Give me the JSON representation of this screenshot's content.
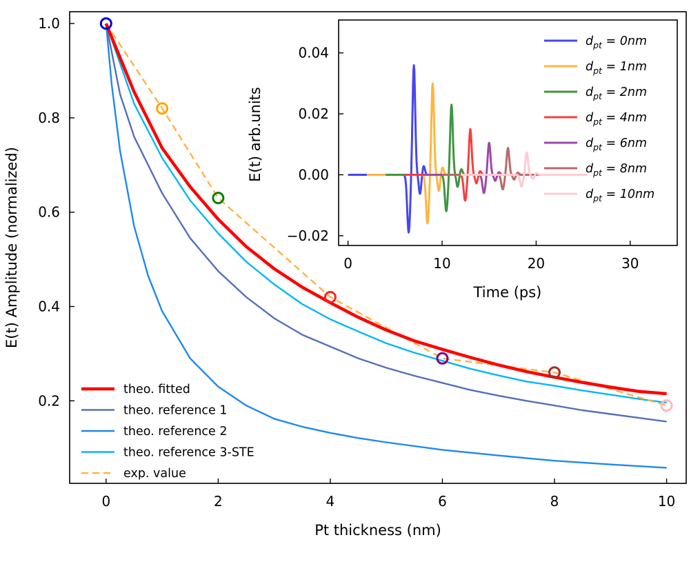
{
  "chart_data": [
    {
      "type": "line",
      "name": "main-plot",
      "xlabel": "Pt thickness (nm)",
      "ylabel": "E(t) Amplitude (normalized)",
      "xlim": [
        -0.65,
        10.35
      ],
      "ylim": [
        0.025,
        1.025
      ],
      "xticks": [
        {
          "value": 0,
          "label": "0"
        },
        {
          "value": 2,
          "label": "2"
        },
        {
          "value": 4,
          "label": "4"
        },
        {
          "value": 6,
          "label": "6"
        },
        {
          "value": 8,
          "label": "8"
        },
        {
          "value": 10,
          "label": "10"
        }
      ],
      "yticks": [
        {
          "value": 0.2,
          "label": "0.2"
        },
        {
          "value": 0.4,
          "label": "0.4"
        },
        {
          "value": 0.6,
          "label": "0.6"
        },
        {
          "value": 0.8,
          "label": "0.8"
        },
        {
          "value": 1.0,
          "label": "1.0"
        }
      ],
      "legend_position": "bottom-left",
      "series": [
        {
          "name": "theo. fitted",
          "color": "#ff0000",
          "style": "solid",
          "weight": "thick",
          "x": [
            0,
            0.5,
            1,
            1.5,
            2,
            2.5,
            3,
            3.5,
            4,
            4.5,
            5,
            5.5,
            6,
            6.5,
            7,
            7.5,
            8,
            8.5,
            9,
            9.5,
            10
          ],
          "y": [
            1.0,
            0.855,
            0.736,
            0.654,
            0.585,
            0.527,
            0.48,
            0.441,
            0.408,
            0.377,
            0.35,
            0.327,
            0.309,
            0.292,
            0.276,
            0.262,
            0.25,
            0.239,
            0.229,
            0.22,
            0.215
          ]
        },
        {
          "name": "theo. reference 1",
          "color": "#5470b8",
          "style": "solid",
          "weight": "normal",
          "x": [
            0,
            0.25,
            0.5,
            1,
            1.5,
            2,
            2.5,
            3,
            3.5,
            4,
            4.5,
            5,
            5.5,
            6,
            6.5,
            7,
            7.5,
            8,
            8.5,
            9,
            9.5,
            10
          ],
          "y": [
            1.0,
            0.85,
            0.76,
            0.64,
            0.545,
            0.475,
            0.42,
            0.375,
            0.34,
            0.315,
            0.29,
            0.27,
            0.253,
            0.238,
            0.223,
            0.211,
            0.2,
            0.19,
            0.18,
            0.172,
            0.164,
            0.156
          ]
        },
        {
          "name": "theo. reference 2",
          "color": "#1e88f0",
          "style": "solid",
          "weight": "normal",
          "x": [
            0,
            0.1,
            0.25,
            0.5,
            0.75,
            1,
            1.5,
            2,
            2.5,
            3,
            3.5,
            4,
            4.5,
            5,
            6,
            7,
            8,
            9,
            10
          ],
          "y": [
            1.0,
            0.87,
            0.73,
            0.57,
            0.465,
            0.39,
            0.29,
            0.23,
            0.19,
            0.162,
            0.145,
            0.132,
            0.121,
            0.112,
            0.096,
            0.084,
            0.073,
            0.065,
            0.058
          ]
        },
        {
          "name": "theo. reference 3-STE",
          "color": "#00b8f5",
          "style": "solid",
          "weight": "normal",
          "x": [
            0,
            0.5,
            1,
            1.5,
            2,
            2.5,
            3,
            3.5,
            4,
            4.5,
            5,
            5.5,
            6,
            6.5,
            7,
            7.5,
            8,
            8.5,
            9,
            9.5,
            10
          ],
          "y": [
            1.0,
            0.83,
            0.715,
            0.625,
            0.555,
            0.495,
            0.447,
            0.405,
            0.373,
            0.347,
            0.322,
            0.302,
            0.285,
            0.268,
            0.254,
            0.241,
            0.232,
            0.222,
            0.213,
            0.204,
            0.196
          ]
        },
        {
          "name": "exp. value",
          "color": "#ffb340",
          "style": "dashed",
          "weight": "normal",
          "x": [
            0,
            1,
            2,
            4,
            6,
            8,
            10
          ],
          "y": [
            1.0,
            0.82,
            0.63,
            0.42,
            0.29,
            0.26,
            0.19
          ]
        }
      ],
      "markers": [
        {
          "x": 0,
          "y": 1.0,
          "color": "#0000e0"
        },
        {
          "x": 1,
          "y": 0.82,
          "color": "#ffa500"
        },
        {
          "x": 2,
          "y": 0.63,
          "color": "#008000"
        },
        {
          "x": 4,
          "y": 0.42,
          "color": "#ff2020"
        },
        {
          "x": 6,
          "y": 0.29,
          "color": "#800080"
        },
        {
          "x": 8,
          "y": 0.26,
          "color": "#a52a2a"
        },
        {
          "x": 10,
          "y": 0.19,
          "color": "#ffb6c1"
        }
      ]
    },
    {
      "type": "line",
      "name": "inset-plot",
      "xlabel": "Time (ps)",
      "ylabel": "E(t) arb.units",
      "xlim": [
        -1.0,
        35.0
      ],
      "ylim": [
        -0.0232,
        0.0508
      ],
      "xticks": [
        {
          "value": 0,
          "label": "0"
        },
        {
          "value": 10,
          "label": "10"
        },
        {
          "value": 20,
          "label": "20"
        },
        {
          "value": 30,
          "label": "30"
        }
      ],
      "yticks": [
        {
          "value": -0.02,
          "label": "−0.02"
        },
        {
          "value": 0.0,
          "label": "0.00"
        },
        {
          "value": 0.02,
          "label": "0.02"
        },
        {
          "value": 0.04,
          "label": "0.04"
        }
      ],
      "legend_position": "top-right",
      "series": [
        {
          "name": "0nm",
          "legend_base": "d",
          "legend_sub": "pt",
          "color": "#4646f0",
          "center": 7.0,
          "amp": 0.036,
          "neg": -0.019,
          "start": 0.0,
          "end": 10.5
        },
        {
          "name": "1nm",
          "legend_base": "d",
          "legend_sub": "pt",
          "color": "#ffb540",
          "center": 9.0,
          "amp": 0.03,
          "neg": -0.016,
          "start": 2.0,
          "end": 12.5
        },
        {
          "name": "2nm",
          "legend_base": "d",
          "legend_sub": "pt",
          "color": "#3e963e",
          "center": 11.0,
          "amp": 0.023,
          "neg": -0.012,
          "start": 4.0,
          "end": 14.5
        },
        {
          "name": "4nm",
          "legend_base": "d",
          "legend_sub": "pt",
          "color": "#f54040",
          "center": 13.0,
          "amp": 0.015,
          "neg": -0.0085,
          "start": 6.0,
          "end": 16.5
        },
        {
          "name": "6nm",
          "legend_base": "d",
          "legend_sub": "pt",
          "color": "#9b49a6",
          "center": 15.0,
          "amp": 0.0105,
          "neg": -0.006,
          "start": 8.0,
          "end": 19.0
        },
        {
          "name": "8nm",
          "legend_base": "d",
          "legend_sub": "pt",
          "color": "#b86868",
          "center": 17.0,
          "amp": 0.0088,
          "neg": -0.0048,
          "start": 10.0,
          "end": 22.5
        },
        {
          "name": "10nm",
          "legend_base": "d",
          "legend_sub": "pt",
          "color": "#ffcad3",
          "center": 19.0,
          "amp": 0.0073,
          "neg": -0.0039,
          "start": 12.0,
          "end": 25.5
        }
      ]
    }
  ]
}
